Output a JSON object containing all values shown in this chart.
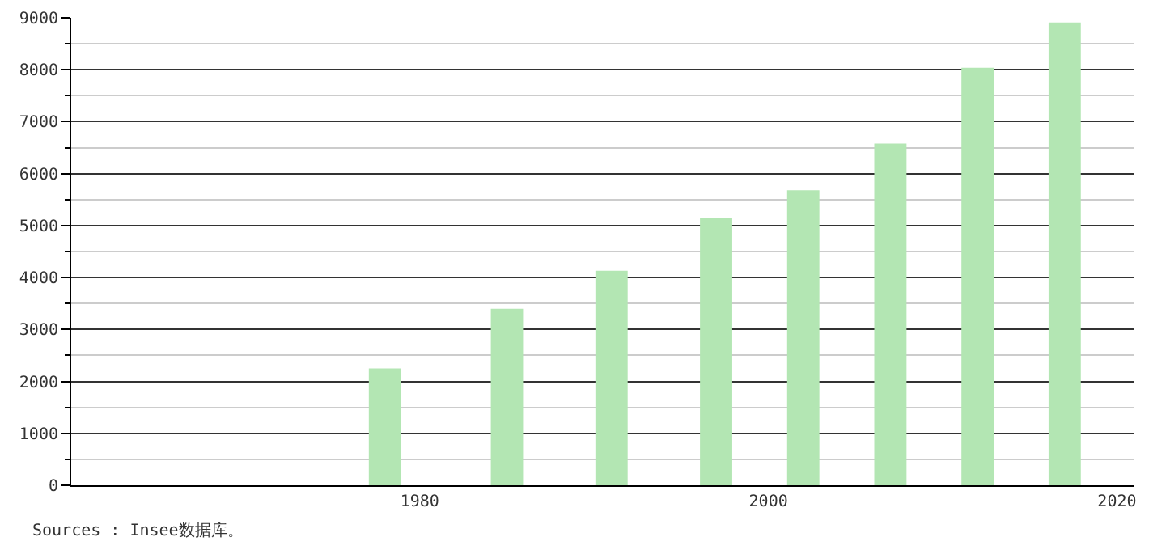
{
  "chart_data": {
    "type": "bar",
    "x": [
      1978,
      1985,
      1991,
      1997,
      2002,
      2007,
      2012,
      2017
    ],
    "values": [
      2250,
      3400,
      4130,
      5150,
      5680,
      6580,
      8040,
      8910
    ],
    "color": "#b3e6b3",
    "xlim": [
      1960,
      2021
    ],
    "xticks": [
      1980,
      2000,
      2020
    ],
    "ylim": [
      0,
      9000
    ],
    "yticks": [
      0,
      1000,
      2000,
      3000,
      4000,
      5000,
      6000,
      7000,
      8000,
      9000
    ],
    "grid": "y",
    "annotations": [
      "Sources : Insee数据库。"
    ]
  }
}
